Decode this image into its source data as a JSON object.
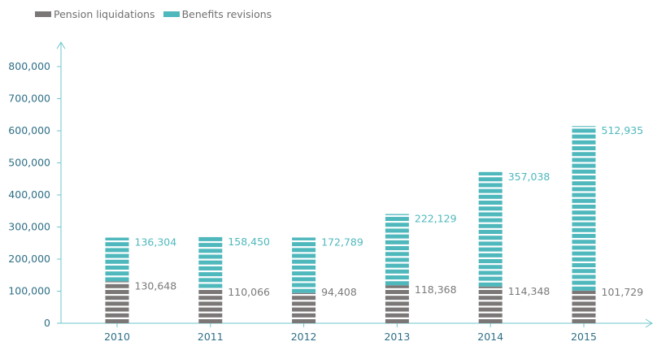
{
  "chart_data": {
    "type": "bar",
    "stacked": true,
    "title": "",
    "xlabel": "",
    "ylabel": "",
    "categories": [
      "2010",
      "2011",
      "2012",
      "2013",
      "2014",
      "2015"
    ],
    "series": [
      {
        "name": "Pension liquidations",
        "color": "#7b7777",
        "values": [
          130648,
          110066,
          94408,
          118368,
          114348,
          101729
        ],
        "labels": [
          "130,648",
          "110,066",
          "94,408",
          "118,368",
          "114,348",
          "101,729"
        ]
      },
      {
        "name": "Benefits revisions",
        "color": "#4fb8bd",
        "values": [
          136304,
          158450,
          172789,
          222129,
          357038,
          512935
        ],
        "labels": [
          "136,304",
          "158,450",
          "172,789",
          "222,129",
          "357,038",
          "512,935"
        ]
      }
    ],
    "ylim": [
      0,
      800000
    ],
    "yticks": [
      "0",
      "100,000",
      "200,000",
      "300,000",
      "400,000",
      "500,000",
      "600,000",
      "700,000",
      "800,000"
    ],
    "grid": false,
    "legend_position": "top-left"
  }
}
